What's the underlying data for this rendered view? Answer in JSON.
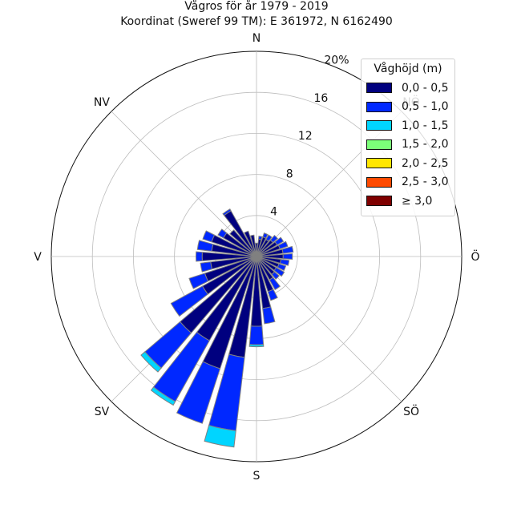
{
  "chart_data": {
    "type": "windrose",
    "title": "Vågros för år 1979 - 2019",
    "subtitle": "Koordinat (Sweref 99 TM): E 361972, N 6162490",
    "directions": [
      {
        "label": "N",
        "angle": 0
      },
      {
        "label": "NV",
        "angle": 315
      },
      {
        "label": "V",
        "angle": 270
      },
      {
        "label": "SV",
        "angle": 225
      },
      {
        "label": "S",
        "angle": 180
      },
      {
        "label": "SÖ",
        "angle": 135
      },
      {
        "label": "Ö",
        "angle": 90
      },
      {
        "label": "NÖ",
        "angle": 45
      }
    ],
    "radial_ticks": [
      4,
      8,
      12,
      16,
      20
    ],
    "radial_tick_labels": [
      "4",
      "8",
      "12",
      "16",
      "20%"
    ],
    "r_max": 20,
    "legend": {
      "title": "Våghöjd (m)",
      "entries": [
        {
          "label": "0,0 - 0,5",
          "color": "#00007f"
        },
        {
          "label": "0,5 - 1,0",
          "color": "#0028ff"
        },
        {
          "label": "1,0 - 1,5",
          "color": "#00d5ff"
        },
        {
          "label": "1,5 - 2,0",
          "color": "#7cff79"
        },
        {
          "label": "2,0 - 2,5",
          "color": "#ffe600"
        },
        {
          "label": "2,5 - 3,0",
          "color": "#ff4a00"
        },
        {
          "label": "≥ 3,0",
          "color": "#7f0000"
        }
      ]
    },
    "sectors": [
      {
        "angle": 0,
        "values": [
          1.3
        ]
      },
      {
        "angle": 11.25,
        "values": [
          1.7,
          0.3
        ]
      },
      {
        "angle": 22.5,
        "values": [
          2.0,
          0.4
        ]
      },
      {
        "angle": 33.75,
        "values": [
          1.9,
          0.5
        ]
      },
      {
        "angle": 45,
        "values": [
          2.1,
          0.6
        ]
      },
      {
        "angle": 56.25,
        "values": [
          2.3,
          0.7
        ]
      },
      {
        "angle": 67.5,
        "values": [
          2.4,
          0.8
        ]
      },
      {
        "angle": 78.75,
        "values": [
          2.6,
          1.0
        ]
      },
      {
        "angle": 90,
        "values": [
          2.6,
          0.9
        ]
      },
      {
        "angle": 101.25,
        "values": [
          2.4,
          0.8
        ]
      },
      {
        "angle": 112.5,
        "values": [
          2.3,
          0.7
        ]
      },
      {
        "angle": 123.75,
        "values": [
          2.2,
          0.9
        ]
      },
      {
        "angle": 135,
        "values": [
          2.3,
          0.6
        ]
      },
      {
        "angle": 146.25,
        "values": [
          2.6,
          1.1
        ]
      },
      {
        "angle": 157.5,
        "values": [
          3.6,
          0.9
        ]
      },
      {
        "angle": 168.75,
        "values": [
          5.1,
          1.5
        ]
      },
      {
        "angle": 180,
        "values": [
          6.8,
          1.8,
          0.2
        ]
      },
      {
        "angle": 191.25,
        "values": [
          9.9,
          7.2,
          1.6
        ]
      },
      {
        "angle": 202.5,
        "values": [
          11.5,
          5.6
        ]
      },
      {
        "angle": 213.75,
        "values": [
          9.4,
          6.8,
          0.4
        ]
      },
      {
        "angle": 225,
        "values": [
          9.8,
          4.5,
          0.5
        ]
      },
      {
        "angle": 236.75,
        "values": [
          6.0,
          3.5
        ]
      },
      {
        "angle": 247.5,
        "values": [
          5.3,
          1.6
        ]
      },
      {
        "angle": 258.75,
        "values": [
          4.5,
          1.0
        ]
      },
      {
        "angle": 270,
        "values": [
          5.3,
          0.6
        ]
      },
      {
        "angle": 281.25,
        "values": [
          4.4,
          1.4
        ]
      },
      {
        "angle": 292.5,
        "values": [
          4.6,
          0.9
        ]
      },
      {
        "angle": 303.75,
        "values": [
          3.7,
          0.6
        ]
      },
      {
        "angle": 315,
        "values": [
          3.4
        ]
      },
      {
        "angle": 326.25,
        "values": [
          5.1,
          0.2
        ]
      },
      {
        "angle": 337.5,
        "values": [
          2.6
        ]
      },
      {
        "angle": 348.75,
        "values": [
          2.1
        ]
      }
    ]
  }
}
